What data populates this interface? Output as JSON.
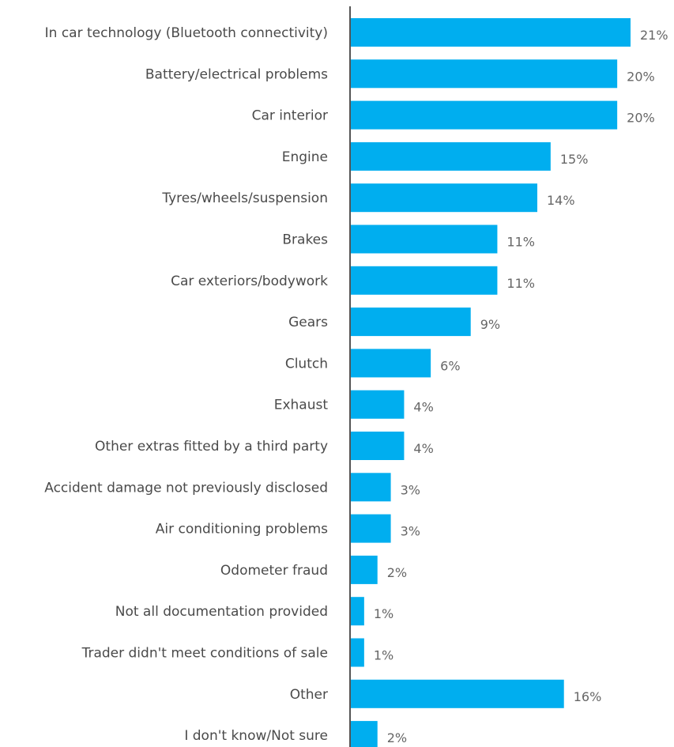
{
  "chart_data": {
    "type": "bar",
    "orientation": "horizontal",
    "categories": [
      "In car technology (Bluetooth connectivity)",
      "Battery/electrical problems",
      "Car interior",
      "Engine",
      "Tyres/wheels/suspension",
      "Brakes",
      "Car exteriors/bodywork",
      "Gears",
      "Clutch",
      "Exhaust",
      "Other extras fitted by a third party",
      "Accident damage not previously disclosed",
      "Air conditioning problems",
      "Odometer fraud",
      "Not all documentation provided",
      "Trader didn't meet conditions of sale",
      "Other",
      "I don't know/Not sure"
    ],
    "values": [
      21,
      20,
      20,
      15,
      14,
      11,
      11,
      9,
      6,
      4,
      4,
      3,
      3,
      2,
      1,
      1,
      16,
      2
    ],
    "value_labels": [
      "21%",
      "20%",
      "20%",
      "15%",
      "14%",
      "11%",
      "11%",
      "9%",
      "6%",
      "4%",
      "4%",
      "3%",
      "3%",
      "2%",
      "1%",
      "1%",
      "16%",
      "2%"
    ],
    "unit": "%",
    "xlim": [
      0,
      21
    ],
    "grid": false,
    "colors": {
      "bar": "#00AEEF",
      "axis": "#555555",
      "category_text": "#4a4a4a",
      "value_text": "#666666"
    }
  }
}
